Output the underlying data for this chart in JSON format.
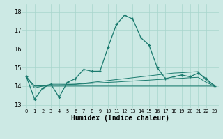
{
  "title": "",
  "xlabel": "Humidex (Indice chaleur)",
  "xlim": [
    -0.5,
    23.5
  ],
  "ylim": [
    12.8,
    18.4
  ],
  "yticks": [
    13,
    14,
    15,
    16,
    17,
    18
  ],
  "xticks": [
    0,
    1,
    2,
    3,
    4,
    5,
    6,
    7,
    8,
    9,
    10,
    11,
    12,
    13,
    14,
    15,
    16,
    17,
    18,
    19,
    20,
    21,
    22,
    23
  ],
  "background_color": "#cce9e4",
  "grid_color": "#a8d5cc",
  "line_color": "#1a7a6e",
  "series": [
    [
      14.5,
      13.3,
      13.9,
      14.1,
      13.4,
      14.2,
      14.4,
      14.9,
      14.8,
      14.8,
      16.1,
      17.3,
      17.8,
      17.6,
      16.6,
      16.2,
      15.0,
      14.4,
      14.5,
      14.6,
      14.5,
      14.7,
      14.4,
      14.0
    ],
    [
      14.5,
      13.9,
      14.0,
      14.1,
      14.1,
      14.1,
      14.1,
      14.15,
      14.2,
      14.25,
      14.3,
      14.35,
      14.4,
      14.45,
      14.5,
      14.55,
      14.6,
      14.65,
      14.7,
      14.72,
      14.75,
      14.78,
      14.3,
      14.05
    ],
    [
      14.5,
      14.0,
      14.02,
      14.05,
      14.05,
      14.08,
      14.1,
      14.12,
      14.15,
      14.18,
      14.2,
      14.22,
      14.25,
      14.27,
      14.3,
      14.32,
      14.35,
      14.37,
      14.4,
      14.42,
      14.45,
      14.47,
      14.2,
      14.0
    ],
    [
      14.5,
      14.0,
      14.0,
      14.0,
      14.0,
      14.0,
      14.0,
      14.0,
      14.0,
      14.0,
      14.0,
      14.0,
      14.0,
      14.0,
      14.0,
      14.0,
      14.0,
      14.0,
      14.0,
      14.0,
      14.0,
      14.0,
      14.0,
      14.0
    ]
  ]
}
